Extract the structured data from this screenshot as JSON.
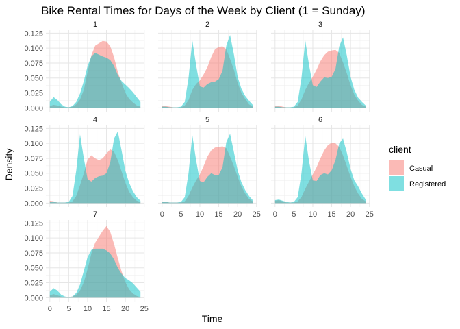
{
  "chart_data": {
    "type": "area",
    "title": "Bike Rental Times for Days of the Week by Client (1 = Sunday)",
    "xlabel": "Time",
    "ylabel": "Density",
    "xlim": [
      0,
      24
    ],
    "ylim": [
      0,
      0.13
    ],
    "x_ticks": [
      0,
      5,
      10,
      15,
      20,
      25
    ],
    "y_ticks": [
      "0.000",
      "0.025",
      "0.050",
      "0.075",
      "0.100",
      "0.125"
    ],
    "y_tick_values": [
      0,
      0.025,
      0.05,
      0.075,
      0.1,
      0.125
    ],
    "grid": true,
    "legend": {
      "title": "client",
      "position": "right"
    },
    "x": [
      0,
      1,
      2,
      3,
      4,
      5,
      6,
      7,
      8,
      9,
      10,
      11,
      12,
      13,
      14,
      15,
      16,
      17,
      18,
      19,
      20,
      21,
      22,
      23,
      24
    ],
    "panels": [
      {
        "label": "1",
        "series": [
          {
            "name": "Casual",
            "color": "#F8766D",
            "values": [
              0.003,
              0.005,
              0.004,
              0.002,
              0.001,
              0.001,
              0.002,
              0.006,
              0.014,
              0.03,
              0.06,
              0.088,
              0.104,
              0.108,
              0.112,
              0.111,
              0.103,
              0.085,
              0.06,
              0.042,
              0.025,
              0.015,
              0.009,
              0.004,
              0.002
            ]
          },
          {
            "name": "Registered",
            "color": "#00BFC4",
            "values": [
              0.01,
              0.018,
              0.013,
              0.006,
              0.002,
              0.001,
              0.003,
              0.01,
              0.024,
              0.045,
              0.07,
              0.086,
              0.092,
              0.089,
              0.086,
              0.084,
              0.08,
              0.07,
              0.055,
              0.045,
              0.039,
              0.033,
              0.026,
              0.018,
              0.01
            ]
          }
        ]
      },
      {
        "label": "2",
        "series": [
          {
            "name": "Casual",
            "color": "#F8766D",
            "values": [
              0.003,
              0.003,
              0.002,
              0.001,
              0.001,
              0.001,
              0.004,
              0.013,
              0.03,
              0.04,
              0.046,
              0.056,
              0.068,
              0.085,
              0.098,
              0.102,
              0.103,
              0.098,
              0.082,
              0.064,
              0.042,
              0.025,
              0.015,
              0.006,
              0.002
            ]
          },
          {
            "name": "Registered",
            "color": "#00BFC4",
            "values": [
              0.002,
              0.002,
              0.001,
              0.001,
              0.001,
              0.002,
              0.01,
              0.05,
              0.113,
              0.072,
              0.036,
              0.034,
              0.04,
              0.043,
              0.044,
              0.048,
              0.062,
              0.104,
              0.122,
              0.09,
              0.052,
              0.032,
              0.02,
              0.012,
              0.005
            ]
          }
        ]
      },
      {
        "label": "3",
        "series": [
          {
            "name": "Casual",
            "color": "#F8766D",
            "values": [
              0.003,
              0.004,
              0.002,
              0.001,
              0.001,
              0.001,
              0.004,
              0.014,
              0.03,
              0.042,
              0.052,
              0.064,
              0.078,
              0.088,
              0.094,
              0.096,
              0.097,
              0.092,
              0.076,
              0.058,
              0.038,
              0.022,
              0.012,
              0.005,
              0.002
            ]
          },
          {
            "name": "Registered",
            "color": "#00BFC4",
            "values": [
              0.002,
              0.002,
              0.001,
              0.001,
              0.001,
              0.002,
              0.01,
              0.05,
              0.113,
              0.072,
              0.038,
              0.035,
              0.044,
              0.051,
              0.05,
              0.052,
              0.065,
              0.103,
              0.118,
              0.088,
              0.052,
              0.03,
              0.017,
              0.01,
              0.004
            ]
          }
        ]
      },
      {
        "label": "4",
        "series": [
          {
            "name": "Casual",
            "color": "#F8766D",
            "values": [
              0.004,
              0.003,
              0.001,
              0.001,
              0.001,
              0.001,
              0.003,
              0.012,
              0.03,
              0.05,
              0.073,
              0.08,
              0.075,
              0.072,
              0.075,
              0.083,
              0.09,
              0.086,
              0.072,
              0.053,
              0.034,
              0.019,
              0.01,
              0.004,
              0.002
            ]
          },
          {
            "name": "Registered",
            "color": "#00BFC4",
            "values": [
              0.002,
              0.002,
              0.001,
              0.001,
              0.001,
              0.002,
              0.012,
              0.055,
              0.115,
              0.075,
              0.04,
              0.036,
              0.042,
              0.045,
              0.046,
              0.05,
              0.068,
              0.108,
              0.12,
              0.088,
              0.054,
              0.034,
              0.02,
              0.01,
              0.004
            ]
          }
        ]
      },
      {
        "label": "5",
        "series": [
          {
            "name": "Casual",
            "color": "#F8766D",
            "values": [
              0.002,
              0.002,
              0.001,
              0.001,
              0.001,
              0.001,
              0.003,
              0.012,
              0.026,
              0.038,
              0.048,
              0.062,
              0.078,
              0.088,
              0.093,
              0.094,
              0.095,
              0.092,
              0.078,
              0.062,
              0.044,
              0.028,
              0.016,
              0.007,
              0.003
            ]
          },
          {
            "name": "Registered",
            "color": "#00BFC4",
            "values": [
              0.002,
              0.002,
              0.001,
              0.001,
              0.001,
              0.002,
              0.01,
              0.05,
              0.114,
              0.072,
              0.037,
              0.035,
              0.044,
              0.05,
              0.047,
              0.047,
              0.06,
              0.102,
              0.116,
              0.086,
              0.055,
              0.035,
              0.022,
              0.012,
              0.005
            ]
          }
        ]
      },
      {
        "label": "6",
        "series": [
          {
            "name": "Casual",
            "color": "#F8766D",
            "values": [
              0.004,
              0.005,
              0.003,
              0.001,
              0.001,
              0.001,
              0.003,
              0.01,
              0.024,
              0.036,
              0.048,
              0.06,
              0.075,
              0.088,
              0.097,
              0.101,
              0.1,
              0.094,
              0.08,
              0.062,
              0.044,
              0.028,
              0.016,
              0.007,
              0.003
            ]
          },
          {
            "name": "Registered",
            "color": "#00BFC4",
            "values": [
              0.005,
              0.006,
              0.004,
              0.002,
              0.001,
              0.002,
              0.01,
              0.05,
              0.113,
              0.07,
              0.038,
              0.037,
              0.047,
              0.05,
              0.048,
              0.055,
              0.072,
              0.1,
              0.108,
              0.085,
              0.057,
              0.038,
              0.028,
              0.016,
              0.006
            ]
          }
        ]
      },
      {
        "label": "7",
        "series": [
          {
            "name": "Casual",
            "color": "#F8766D",
            "values": [
              0.004,
              0.006,
              0.004,
              0.002,
              0.001,
              0.001,
              0.002,
              0.005,
              0.012,
              0.026,
              0.048,
              0.074,
              0.092,
              0.102,
              0.112,
              0.12,
              0.11,
              0.09,
              0.066,
              0.044,
              0.026,
              0.014,
              0.007,
              0.003,
              0.001
            ]
          },
          {
            "name": "Registered",
            "color": "#00BFC4",
            "values": [
              0.01,
              0.016,
              0.012,
              0.005,
              0.002,
              0.001,
              0.002,
              0.008,
              0.022,
              0.045,
              0.068,
              0.08,
              0.082,
              0.082,
              0.082,
              0.079,
              0.074,
              0.064,
              0.05,
              0.04,
              0.033,
              0.029,
              0.024,
              0.017,
              0.01
            ]
          }
        ]
      }
    ]
  }
}
